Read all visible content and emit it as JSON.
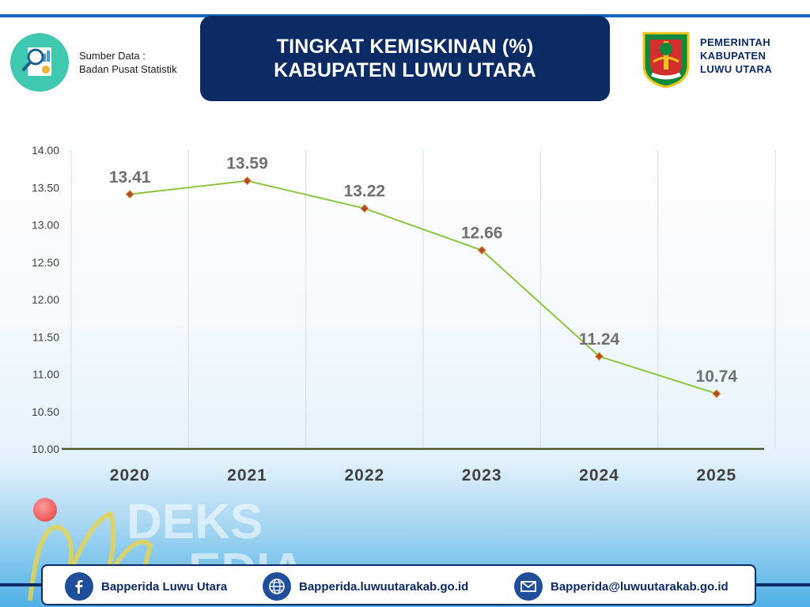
{
  "header": {
    "source_label": "Sumber Data :",
    "source_name": "Badan Pusat Statistik",
    "title_line1": "TINGKAT KEMISKINAN (%)",
    "title_line2": "KABUPATEN LUWU UTARA",
    "gov_line1": "PEMERINTAH",
    "gov_line2": "KABUPATEN",
    "gov_line3": "LUWU UTARA",
    "emblem_text": "LUWU UTARA"
  },
  "chart_data": {
    "type": "line",
    "categories": [
      "2020",
      "2021",
      "2022",
      "2023",
      "2024",
      "2025"
    ],
    "values": [
      13.41,
      13.59,
      13.22,
      12.66,
      11.24,
      10.74
    ],
    "data_labels": [
      "13.41",
      "13.59",
      "13.22",
      "12.66",
      "11.24",
      "10.74"
    ],
    "y_ticks": [
      "10.00",
      "10.50",
      "11.00",
      "11.50",
      "12.00",
      "12.50",
      "13.00",
      "13.50",
      "14.00"
    ],
    "ylim": [
      10,
      14
    ],
    "line_color": "#8cc63f",
    "marker_color": "#b5472b",
    "grid": "vertical"
  },
  "watermark": {
    "line1": "DEKS",
    "line2": "EDIA"
  },
  "footer": {
    "facebook": "Bapperida Luwu Utara",
    "website": "Bapperida.luwuutarakab.go.id",
    "email": "Bapperida@luwuutarakab.go.id"
  },
  "colors": {
    "navy": "#0c2a63",
    "accent": "#1565c0",
    "teal": "#3fc9b0"
  }
}
